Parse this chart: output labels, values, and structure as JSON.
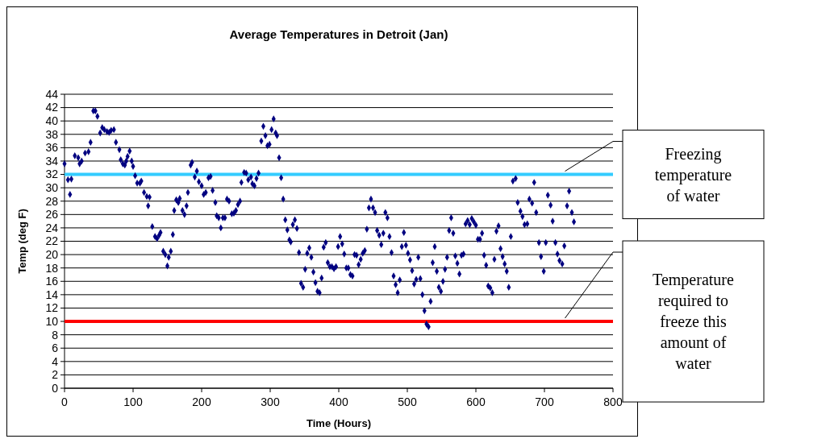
{
  "chart_data": {
    "type": "scatter",
    "title": "Average Temperatures in Detroit (Jan)",
    "xlabel": "Time (Hours)",
    "ylabel": "Temp (deg F)",
    "x": [
      0,
      5,
      8,
      10,
      15,
      20,
      22,
      25,
      30,
      35,
      38,
      42,
      45,
      48,
      52,
      55,
      58,
      62,
      65,
      68,
      72,
      75,
      80,
      82,
      85,
      88,
      90,
      92,
      95,
      98,
      100,
      103,
      106,
      110,
      112,
      116,
      120,
      122,
      124,
      128,
      132,
      135,
      138,
      140,
      144,
      147,
      150,
      152,
      155,
      158,
      160,
      163,
      166,
      168,
      172,
      175,
      178,
      180,
      184,
      186,
      190,
      193,
      196,
      200,
      203,
      206,
      210,
      213,
      216,
      220,
      222,
      225,
      228,
      231,
      234,
      237,
      240,
      244,
      247,
      250,
      253,
      256,
      258,
      262,
      265,
      268,
      272,
      274,
      277,
      280,
      283,
      287,
      290,
      293,
      296,
      299,
      302,
      305,
      308,
      310,
      313,
      316,
      319,
      322,
      325,
      328,
      330,
      333,
      336,
      339,
      342,
      345,
      348,
      351,
      354,
      357,
      360,
      363,
      366,
      369,
      372,
      375,
      378,
      381,
      384,
      387,
      390,
      393,
      396,
      399,
      402,
      405,
      408,
      411,
      414,
      417,
      420,
      423,
      426,
      429,
      432,
      435,
      438,
      441,
      444,
      447,
      450,
      453,
      456,
      459,
      462,
      465,
      468,
      471,
      474,
      477,
      480,
      483,
      486,
      489,
      492,
      495,
      498,
      501,
      504,
      507,
      510,
      513,
      516,
      519,
      522,
      525,
      528,
      531,
      534,
      537,
      540,
      543,
      546,
      549,
      552,
      555,
      558,
      561,
      564,
      567,
      570,
      573,
      576,
      579,
      582,
      585,
      588,
      591,
      594,
      597,
      600,
      603,
      606,
      609,
      612,
      615,
      618,
      621,
      624,
      627,
      630,
      633,
      636,
      639,
      642,
      645,
      648,
      651,
      654,
      658,
      661,
      665,
      668,
      671,
      675,
      678,
      682,
      685,
      688,
      692,
      695,
      699,
      702,
      705,
      709,
      712,
      716,
      719,
      722,
      726,
      729,
      733,
      736,
      740,
      743
    ],
    "series": [
      {
        "color": "#000080",
        "values": [
          33.6,
          31.2,
          29,
          31.3,
          34.8,
          34.5,
          33.6,
          34,
          35.2,
          35.4,
          36.8,
          41.5,
          41.5,
          40.7,
          38.2,
          39,
          38.7,
          38.4,
          38.3,
          38.6,
          38.7,
          36.8,
          35.7,
          34.2,
          33.6,
          33.4,
          34,
          34.7,
          35.5,
          34,
          33.2,
          31.8,
          30.7,
          30.7,
          31,
          29.3,
          28.7,
          27.3,
          28.6,
          24.2,
          22.7,
          22.4,
          22.9,
          23.3,
          20.5,
          20,
          18.3,
          19.6,
          20.5,
          23,
          26.6,
          28.2,
          27.8,
          28.4,
          26.6,
          26,
          27.3,
          29.3,
          33.4,
          33.8,
          31.6,
          32.5,
          30.9,
          30.3,
          29,
          29.3,
          31.5,
          31.7,
          29.6,
          27.8,
          25.8,
          25.5,
          24,
          25.5,
          25.5,
          28.3,
          28,
          26.1,
          26.2,
          26.6,
          27.5,
          28,
          30.8,
          32.3,
          32.2,
          31.2,
          31.6,
          30.6,
          30.3,
          31.4,
          32.2,
          37,
          39.2,
          37.8,
          36.3,
          36.5,
          38.7,
          40.3,
          38.2,
          37.8,
          34.5,
          31.5,
          28.3,
          25.2,
          23.7,
          22.2,
          21.9,
          24.5,
          25.2,
          23.9,
          20.3,
          15.7,
          15.1,
          17.8,
          20.2,
          21,
          19.6,
          17.4,
          15.8,
          14.5,
          14.3,
          16.5,
          21.1,
          21.8,
          18.8,
          18.2,
          18.2,
          17.9,
          18.2,
          21.2,
          22.7,
          21.6,
          20.1,
          18,
          18,
          17,
          16.8,
          20,
          19.9,
          18.5,
          19.3,
          20.2,
          20.6,
          23.8,
          27,
          28.3,
          27,
          26.3,
          23.6,
          22.9,
          21.5,
          23.2,
          26.3,
          25.5,
          22.7,
          20.3,
          16.8,
          15.5,
          14.3,
          16.2,
          21.2,
          23.3,
          21.4,
          20.2,
          19.2,
          17.6,
          15.6,
          16.3,
          19.6,
          16.4,
          14,
          11.6,
          9.6,
          9.2,
          13,
          18.8,
          21.2,
          17.5,
          15.1,
          14.5,
          16,
          17.8,
          19.6,
          23.6,
          25.5,
          23.2,
          19.8,
          18.7,
          17.1,
          19.9,
          20.1,
          24.6,
          25.1,
          24.5,
          25.4,
          24.9,
          24.4,
          22.3,
          22.3,
          23.2,
          19.9,
          18.4,
          15.3,
          15,
          14.3,
          19.3,
          23.5,
          24.3,
          20.9,
          19.7,
          18.6,
          17.5,
          15.1,
          22.7,
          31,
          31.4,
          27.8,
          26.5,
          25.7,
          24.5,
          24.6,
          28.3,
          27.7,
          30.8,
          26.3,
          21.8,
          19.7,
          17.5,
          21.8,
          28.9,
          27.4,
          25,
          21.8,
          20.1,
          19.1,
          18.6,
          21.3,
          27.3,
          29.5,
          26.3,
          24.9
        ]
      }
    ],
    "marker": "diamond",
    "xlim": [
      0,
      800
    ],
    "xticks": [
      0,
      100,
      200,
      300,
      400,
      500,
      600,
      700,
      800
    ],
    "ylim": [
      0,
      44
    ],
    "yticks": [
      0,
      2,
      4,
      6,
      8,
      10,
      12,
      14,
      16,
      18,
      20,
      22,
      24,
      26,
      28,
      30,
      32,
      34,
      36,
      38,
      40,
      42,
      44
    ],
    "grid": "y",
    "ref_lines": [
      {
        "axis": "y",
        "value": 32,
        "label": "Freezing temperature of water",
        "color": "#33ccff"
      },
      {
        "axis": "y",
        "value": 10,
        "label": "Temperature required to freeze this amount of water",
        "color": "#ff0000"
      }
    ]
  }
}
